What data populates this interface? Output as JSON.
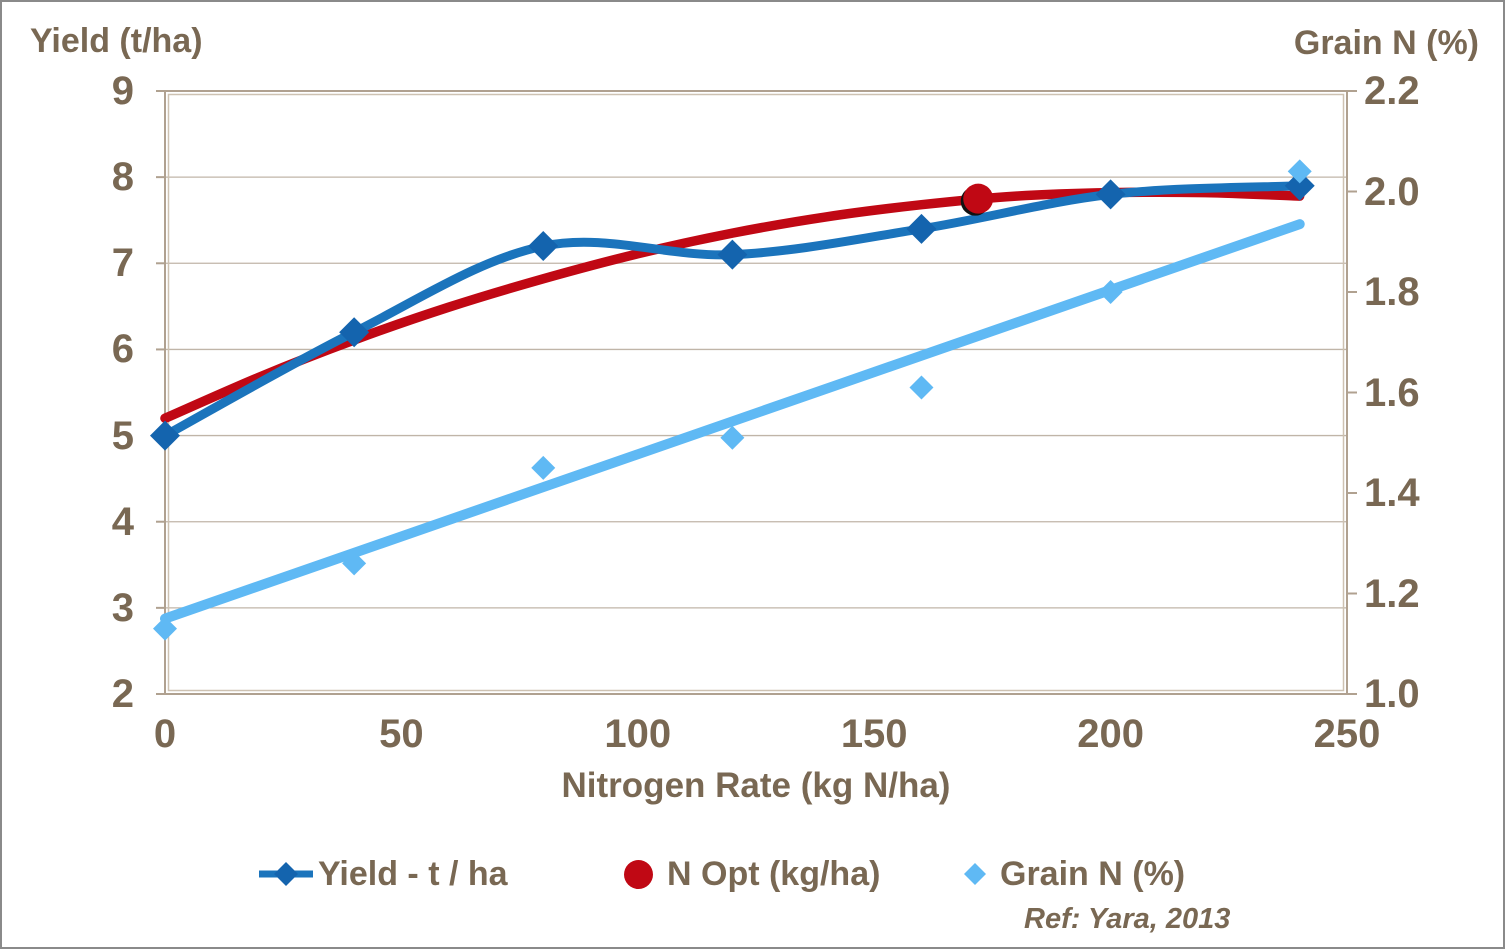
{
  "chart_data": {
    "type": "line",
    "left_axis": {
      "label": "Yield (t/ha)",
      "min": 2,
      "max": 9,
      "ticks": [
        9,
        8,
        7,
        6,
        5,
        4,
        3,
        2
      ]
    },
    "right_axis": {
      "label": "Grain N (%)",
      "min": 1.0,
      "max": 2.2,
      "ticks": [
        "2.2",
        "2.0",
        "1.8",
        "1.6",
        "1.4",
        "1.2",
        "1.0"
      ]
    },
    "x_axis": {
      "label": "Nitrogen Rate (kg N/ha)",
      "min": 0,
      "max": 250,
      "ticks": [
        0,
        50,
        100,
        150,
        200,
        250
      ]
    },
    "grid": "horizontal-only",
    "legend_position": "bottom",
    "series": [
      {
        "name": "Yield - t / ha",
        "type": "smooth-line-with-diamond-markers",
        "axis": "left",
        "line_color": "#1b74bc",
        "marker_color": "#1464ae",
        "x": [
          0,
          40,
          80,
          120,
          160,
          200,
          240
        ],
        "y": [
          5.0,
          6.2,
          7.2,
          7.1,
          7.4,
          7.8,
          7.9
        ]
      },
      {
        "name": "N Opt (kg/ha)",
        "type": "smooth-curve-with-optimum-point",
        "axis": "left",
        "line_color": "#c00814",
        "curve_x": [
          0,
          20,
          40,
          60,
          80,
          100,
          120,
          140,
          160,
          180,
          200,
          220,
          240
        ],
        "curve_y": [
          5.2,
          5.68,
          6.11,
          6.49,
          6.82,
          7.11,
          7.35,
          7.54,
          7.68,
          7.78,
          7.82,
          7.82,
          7.78
        ],
        "opt_point": {
          "x": 172,
          "y": 7.75
        }
      },
      {
        "name": "Grain N (%)",
        "type": "scatter-diamonds-with-linear-trend",
        "axis": "right",
        "color": "#5fb9f4",
        "x": [
          0,
          40,
          80,
          120,
          160,
          200,
          240
        ],
        "y": [
          1.13,
          1.26,
          1.45,
          1.51,
          1.61,
          1.8,
          2.04
        ],
        "trend_line": {
          "x1": 0,
          "y1": 1.15,
          "x2": 240,
          "y2": 1.935
        }
      }
    ],
    "footnote": "Ref: Yara, 2013"
  },
  "colors": {
    "text": "#796853",
    "gridline": "#c0b5a8",
    "plot_border_outer": "#b0a190",
    "plot_border_inner": "#cec2b2",
    "yield_line": "#1b74bc",
    "yield_marker": "#1464ae",
    "nopt_red": "#c00814",
    "grain_blue": "#5fb9f4",
    "opt_dot_shadow": "#111111"
  }
}
